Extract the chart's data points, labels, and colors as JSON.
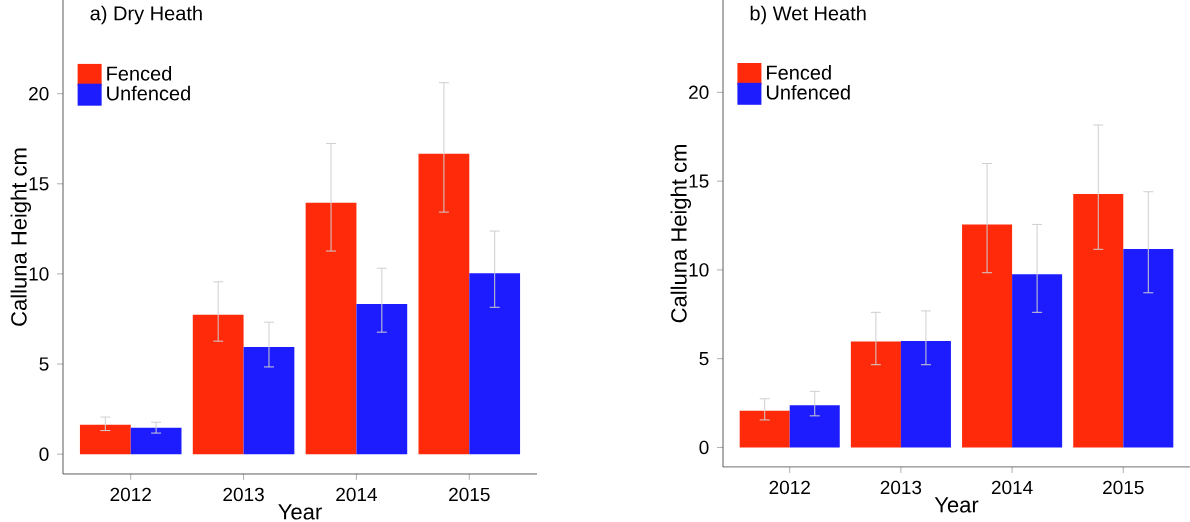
{
  "chart_data": [
    {
      "type": "bar",
      "title": "a) Dry Heath",
      "xlabel": "Year",
      "ylabel": "Calluna Height cm",
      "categories": [
        "2012",
        "2013",
        "2014",
        "2015"
      ],
      "ylim": [
        -1.1,
        25.2
      ],
      "yticks": [
        0,
        5,
        10,
        15,
        20
      ],
      "legend": "top left",
      "series": [
        {
          "name": "Fenced",
          "color": "#ff2a0a",
          "values": [
            1.63,
            7.74,
            13.95,
            16.67
          ],
          "errors": [
            [
              1.31,
              2.06
            ],
            [
              6.27,
              9.56
            ],
            [
              11.27,
              17.24
            ],
            [
              13.43,
              20.61
            ]
          ]
        },
        {
          "name": "Unfenced",
          "color": "#1c1cff",
          "values": [
            1.47,
            5.95,
            8.33,
            10.04
          ],
          "errors": [
            [
              1.17,
              1.77
            ],
            [
              4.84,
              7.32
            ],
            [
              6.77,
              10.32
            ],
            [
              8.15,
              12.38
            ]
          ]
        }
      ]
    },
    {
      "type": "bar",
      "title": "b) Wet Heath",
      "xlabel": "Year",
      "ylabel": "Calluna Height cm",
      "categories": [
        "2012",
        "2013",
        "2014",
        "2015"
      ],
      "ylim": [
        -1.1,
        25.2
      ],
      "yticks": [
        0,
        5,
        10,
        15,
        20
      ],
      "legend": "top left",
      "series": [
        {
          "name": "Fenced",
          "color": "#ff2a0a",
          "values": [
            2.07,
            5.96,
            12.56,
            14.27
          ],
          "errors": [
            [
              1.55,
              2.74
            ],
            [
              4.66,
              7.61
            ],
            [
              9.84,
              15.99
            ],
            [
              11.16,
              18.16
            ]
          ]
        },
        {
          "name": "Unfenced",
          "color": "#1c1cff",
          "values": [
            2.38,
            6.0,
            9.76,
            11.18
          ],
          "errors": [
            [
              1.78,
              3.16
            ],
            [
              4.66,
              7.69
            ],
            [
              7.61,
              12.56
            ],
            [
              8.71,
              14.4
            ]
          ]
        }
      ]
    }
  ]
}
